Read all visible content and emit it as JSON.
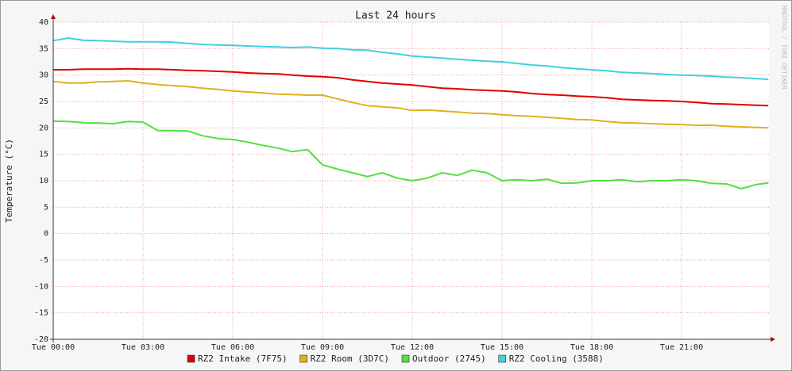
{
  "chart_data": {
    "type": "line",
    "title": "Last 24 hours",
    "y_label": "Temperature (°C)",
    "watermark": "RRDTOOL / TOBI OETIKER",
    "x": [
      0,
      0.5,
      1,
      1.5,
      2,
      2.5,
      3,
      3.5,
      4,
      4.5,
      5,
      5.5,
      6,
      6.5,
      7,
      7.5,
      8,
      8.5,
      9,
      9.5,
      10,
      10.5,
      11,
      11.5,
      12,
      12.5,
      13,
      13.5,
      14,
      14.5,
      15,
      15.5,
      16,
      16.5,
      17,
      17.5,
      18,
      18.5,
      19,
      19.5,
      20,
      20.5,
      21,
      21.5,
      22,
      22.5,
      23,
      23.5,
      23.9
    ],
    "xlim": [
      0,
      24
    ],
    "xticks": [
      {
        "value": 0,
        "label": "Tue 00:00"
      },
      {
        "value": 3,
        "label": "Tue 03:00"
      },
      {
        "value": 6,
        "label": "Tue 06:00"
      },
      {
        "value": 9,
        "label": "Tue 09:00"
      },
      {
        "value": 12,
        "label": "Tue 12:00"
      },
      {
        "value": 15,
        "label": "Tue 15:00"
      },
      {
        "value": 18,
        "label": "Tue 18:00"
      },
      {
        "value": 21,
        "label": "Tue 21:00"
      }
    ],
    "ylim": [
      -20,
      40
    ],
    "yticks": [
      -20,
      -15,
      -10,
      -5,
      0,
      5,
      10,
      15,
      20,
      25,
      30,
      35,
      40
    ],
    "grid": true,
    "legend": "bottom",
    "series": [
      {
        "name": "RZ2 Intake (7F75)",
        "color": "#e00000",
        "values": [
          31,
          31,
          31.1,
          31.1,
          31.1,
          31.2,
          31.1,
          31.1,
          31,
          30.9,
          30.8,
          30.7,
          30.6,
          30.4,
          30.3,
          30.2,
          30,
          29.8,
          29.7,
          29.5,
          29.1,
          28.8,
          28.5,
          28.3,
          28.1,
          27.8,
          27.5,
          27.4,
          27.2,
          27.1,
          27,
          26.8,
          26.5,
          26.3,
          26.2,
          26,
          25.9,
          25.7,
          25.4,
          25.3,
          25.2,
          25.1,
          25,
          24.8,
          24.6,
          24.5,
          24.4,
          24.3,
          24.2
        ]
      },
      {
        "name": "RZ2 Room (3D7C)",
        "color": "#e0b020",
        "values": [
          28.8,
          28.5,
          28.5,
          28.7,
          28.8,
          28.9,
          28.5,
          28.2,
          28,
          27.8,
          27.5,
          27.3,
          27,
          26.8,
          26.6,
          26.4,
          26.3,
          26.2,
          26.2,
          25.5,
          24.8,
          24.2,
          24,
          23.8,
          23.3,
          23.4,
          23.2,
          23,
          22.8,
          22.7,
          22.5,
          22.3,
          22.2,
          22,
          21.8,
          21.6,
          21.5,
          21.2,
          21,
          20.9,
          20.8,
          20.7,
          20.6,
          20.5,
          20.5,
          20.3,
          20.2,
          20.1,
          20
        ]
      },
      {
        "name": "Outdoor (2745)",
        "color": "#50e040",
        "values": [
          21.3,
          21.2,
          21,
          20.9,
          20.8,
          21.2,
          21.1,
          19.5,
          19.5,
          19.4,
          18.5,
          18,
          17.8,
          17.3,
          16.7,
          16.2,
          15.5,
          15.9,
          13,
          12.2,
          11.5,
          10.8,
          11.5,
          10.5,
          10,
          10.5,
          11.5,
          11,
          12,
          11.5,
          10,
          10.2,
          10,
          10.3,
          9.5,
          9.6,
          10,
          10,
          10.2,
          9.8,
          10,
          10,
          10.2,
          10,
          9.5,
          9.4,
          8.5,
          9.3,
          9.6
        ]
      },
      {
        "name": "RZ2 Cooling (3588)",
        "color": "#40d0e0",
        "values": [
          36.5,
          37,
          36.6,
          36.5,
          36.4,
          36.3,
          36.3,
          36.3,
          36.2,
          36,
          35.8,
          35.7,
          35.6,
          35.5,
          35.4,
          35.3,
          35.2,
          35.3,
          35.1,
          35,
          34.8,
          34.7,
          34.3,
          34,
          33.6,
          33.4,
          33.2,
          33,
          32.8,
          32.6,
          32.5,
          32.2,
          31.9,
          31.7,
          31.4,
          31.2,
          31,
          30.8,
          30.5,
          30.4,
          30.3,
          30.1,
          30,
          29.9,
          29.8,
          29.6,
          29.5,
          29.3,
          29.2
        ]
      }
    ]
  }
}
